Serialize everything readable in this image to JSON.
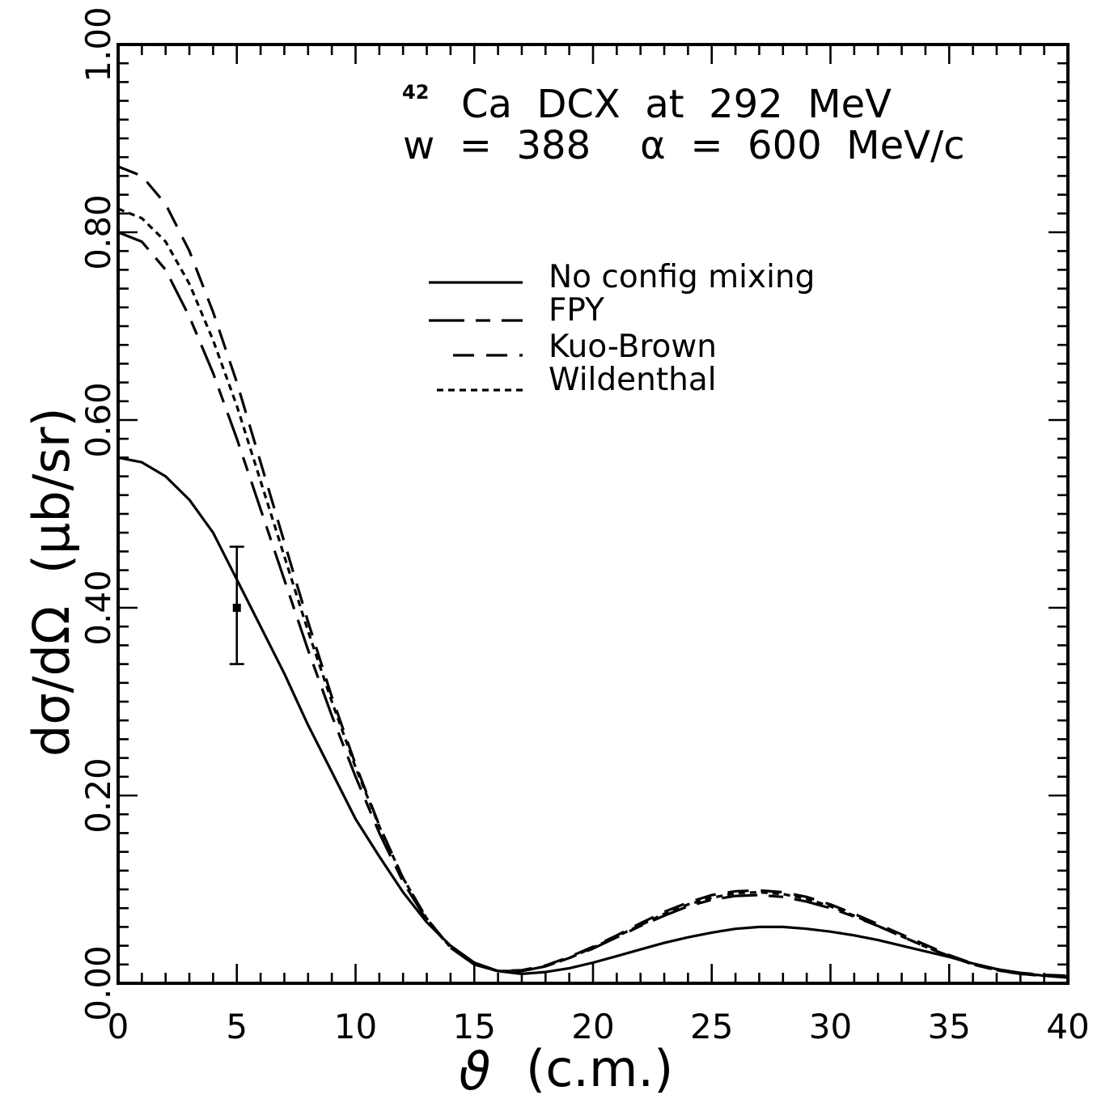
{
  "chart_data": {
    "type": "line",
    "title_sup": "42",
    "title_line1": "Ca  DCX  at  292  MeV",
    "title_line2": "w  =  388    α  =  600  MeV/c",
    "xlabel_sym": "ϑ",
    "xlabel_rest": "(c.m.)",
    "ylabel": "dσ/dΩ  (μb/sr)",
    "xlim": [
      0,
      40
    ],
    "ylim": [
      0.0,
      1.0
    ],
    "xticks": [
      0,
      5,
      10,
      15,
      20,
      25,
      30,
      35,
      40
    ],
    "xtick_labels": [
      "0",
      "5",
      "10",
      "15",
      "20",
      "25",
      "30",
      "35",
      "40"
    ],
    "yticks": [
      0.0,
      0.2,
      0.4,
      0.6,
      0.8,
      1.0
    ],
    "ytick_labels": [
      "0.00",
      "0.20",
      "0.40",
      "0.60",
      "0.80",
      "1.00"
    ],
    "grid": false,
    "legend_position": "upper-center",
    "series": [
      {
        "name": "No config mixing",
        "style": "solid",
        "x": [
          0,
          1,
          2,
          3,
          4,
          5,
          6,
          7,
          8,
          9,
          10,
          11,
          12,
          13,
          14,
          15,
          16,
          17,
          18,
          19,
          20,
          21,
          22,
          23,
          24,
          25,
          26,
          27,
          28,
          29,
          30,
          31,
          32,
          33,
          34,
          35,
          36,
          37,
          38,
          39,
          40
        ],
        "y": [
          0.56,
          0.555,
          0.54,
          0.515,
          0.48,
          0.43,
          0.38,
          0.33,
          0.275,
          0.225,
          0.175,
          0.135,
          0.097,
          0.065,
          0.04,
          0.022,
          0.013,
          0.01,
          0.012,
          0.016,
          0.022,
          0.029,
          0.036,
          0.043,
          0.049,
          0.054,
          0.058,
          0.06,
          0.06,
          0.058,
          0.055,
          0.051,
          0.046,
          0.04,
          0.034,
          0.028,
          0.021,
          0.015,
          0.011,
          0.008,
          0.006
        ]
      },
      {
        "name": "FPY",
        "style": "long-short-dash",
        "x": [
          0,
          1,
          2,
          3,
          4,
          5,
          6,
          7,
          8,
          9,
          10,
          11,
          12,
          13,
          14,
          15,
          16,
          17,
          18,
          19,
          20,
          21,
          22,
          23,
          24,
          25,
          26,
          27,
          28,
          29,
          30,
          31,
          32,
          33,
          34,
          35,
          36,
          37,
          38,
          39,
          40
        ],
        "y": [
          0.8,
          0.79,
          0.76,
          0.71,
          0.65,
          0.58,
          0.505,
          0.43,
          0.355,
          0.285,
          0.22,
          0.16,
          0.108,
          0.067,
          0.038,
          0.02,
          0.013,
          0.013,
          0.018,
          0.027,
          0.037,
          0.049,
          0.061,
          0.072,
          0.082,
          0.089,
          0.093,
          0.094,
          0.092,
          0.087,
          0.08,
          0.071,
          0.061,
          0.05,
          0.039,
          0.029,
          0.02,
          0.014,
          0.01,
          0.008,
          0.007
        ]
      },
      {
        "name": "Kuo-Brown",
        "style": "dashed",
        "x": [
          0,
          1,
          2,
          3,
          4,
          5,
          6,
          7,
          8,
          9,
          10,
          11,
          12,
          13,
          14,
          15,
          16,
          17,
          18,
          19,
          20,
          21,
          22,
          23,
          24,
          25,
          26,
          27,
          28,
          29,
          30,
          31,
          32,
          33,
          34,
          35,
          36,
          37,
          38,
          39,
          40
        ],
        "y": [
          0.87,
          0.86,
          0.83,
          0.78,
          0.715,
          0.64,
          0.555,
          0.47,
          0.385,
          0.305,
          0.233,
          0.168,
          0.112,
          0.069,
          0.038,
          0.02,
          0.013,
          0.014,
          0.019,
          0.028,
          0.039,
          0.051,
          0.064,
          0.076,
          0.086,
          0.094,
          0.098,
          0.099,
          0.097,
          0.092,
          0.084,
          0.074,
          0.063,
          0.052,
          0.041,
          0.03,
          0.021,
          0.015,
          0.011,
          0.009,
          0.008
        ]
      },
      {
        "name": "Wildenthal",
        "style": "dotted",
        "x": [
          0,
          1,
          2,
          3,
          4,
          5,
          6,
          7,
          8,
          9,
          10,
          11,
          12,
          13,
          14,
          15,
          16,
          17,
          18,
          19,
          20,
          21,
          22,
          23,
          24,
          25,
          26,
          27,
          28,
          29,
          30,
          31,
          32,
          33,
          34,
          35,
          36,
          37,
          38,
          39,
          40
        ],
        "y": [
          0.825,
          0.815,
          0.79,
          0.745,
          0.685,
          0.615,
          0.535,
          0.455,
          0.375,
          0.3,
          0.23,
          0.167,
          0.112,
          0.069,
          0.038,
          0.02,
          0.013,
          0.013,
          0.018,
          0.027,
          0.038,
          0.05,
          0.062,
          0.074,
          0.084,
          0.091,
          0.096,
          0.097,
          0.095,
          0.09,
          0.082,
          0.072,
          0.061,
          0.05,
          0.039,
          0.029,
          0.02,
          0.014,
          0.01,
          0.008,
          0.007
        ]
      }
    ],
    "data_points": [
      {
        "x": 5,
        "y": 0.4,
        "y_low": 0.34,
        "y_high": 0.465
      }
    ]
  }
}
